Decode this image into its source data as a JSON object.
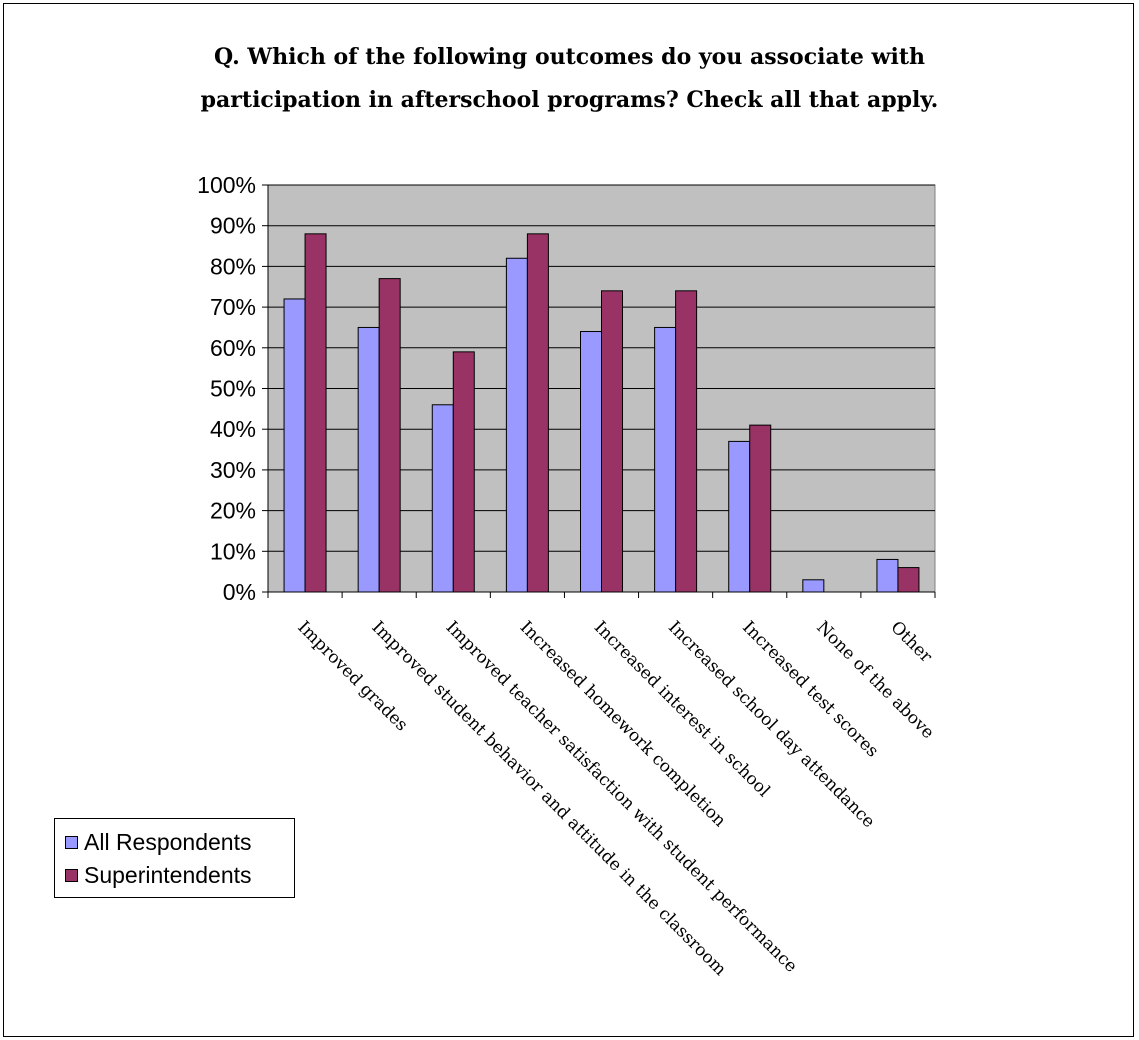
{
  "chart_data": {
    "type": "bar",
    "title": "Q. Which of the following outcomes do you associate with participation in afterschool programs? Check all that apply.",
    "title_lines": [
      "Q. Which of the following outcomes do you associate with",
      "participation in afterschool programs? Check all that apply."
    ],
    "categories": [
      "Improved grades",
      "Improved student behavior and attitude in the classroom",
      "Improved teacher satisfaction with student performance",
      "Increased homework completion",
      "Increased interest in school",
      "Increased school day attendance",
      "Increased test scores",
      "None of the above",
      "Other"
    ],
    "series": [
      {
        "name": "All Respondents",
        "color": "#9999ff",
        "values": [
          72,
          65,
          46,
          82,
          64,
          65,
          37,
          3,
          8
        ]
      },
      {
        "name": "Superintendents",
        "color": "#993366",
        "values": [
          88,
          77,
          59,
          88,
          74,
          74,
          41,
          0,
          6
        ]
      }
    ],
    "ylim": [
      0,
      100
    ],
    "yticks": [
      0,
      10,
      20,
      30,
      40,
      50,
      60,
      70,
      80,
      90,
      100
    ],
    "ytick_labels": [
      "0%",
      "10%",
      "20%",
      "30%",
      "40%",
      "50%",
      "60%",
      "70%",
      "80%",
      "90%",
      "100%"
    ],
    "plot_background": "#c0c0c0",
    "grid": true,
    "legend_position": "bottom-left"
  }
}
